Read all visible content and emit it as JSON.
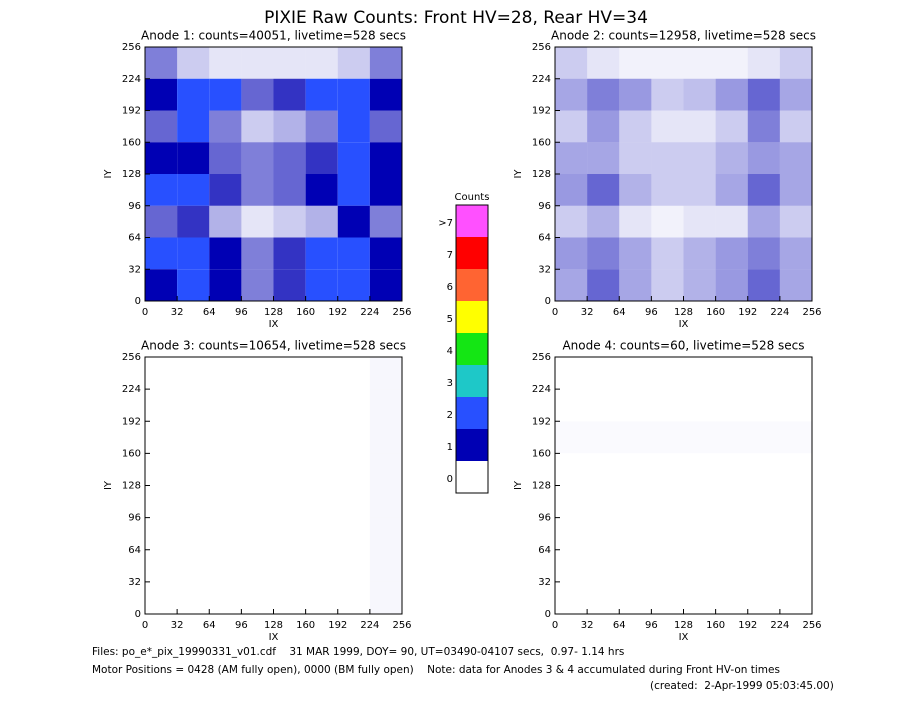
{
  "title": "PIXIE Raw Counts:  Front HV=28, Rear HV=34",
  "chart_data": [
    {
      "type": "heatmap",
      "title": "Anode 1: counts=40051, livetime=528 secs",
      "xlabel": "IX",
      "ylabel": "IY",
      "xlim": [
        0,
        256
      ],
      "ylim": [
        0,
        256
      ],
      "xticks": [
        0,
        32,
        64,
        96,
        128,
        160,
        192,
        224,
        256
      ],
      "yticks": [
        0,
        32,
        64,
        96,
        128,
        160,
        192,
        224,
        256
      ],
      "z": [
        [
          0.5,
          0.2,
          0.1,
          0.1,
          0.1,
          0.1,
          0.2,
          0.5
        ],
        [
          1.0,
          1.5,
          1.2,
          0.6,
          0.8,
          1.2,
          2.0,
          1.0
        ],
        [
          0.6,
          1.2,
          0.5,
          0.2,
          0.3,
          0.5,
          1.5,
          0.6
        ],
        [
          1.0,
          1.0,
          0.6,
          0.5,
          0.6,
          0.8,
          1.2,
          1.0
        ],
        [
          1.2,
          2.0,
          0.8,
          0.5,
          0.6,
          1.0,
          2.0,
          1.0
        ],
        [
          0.6,
          0.8,
          0.3,
          0.1,
          0.2,
          0.3,
          1.0,
          0.5
        ],
        [
          1.2,
          1.5,
          1.0,
          0.5,
          0.8,
          1.2,
          1.6,
          1.0
        ],
        [
          1.0,
          2.0,
          1.0,
          0.5,
          0.8,
          1.2,
          2.0,
          1.0
        ]
      ]
    },
    {
      "type": "heatmap",
      "title": "Anode 2: counts=12958, livetime=528 secs",
      "xlabel": "IX",
      "ylabel": "IY",
      "xlim": [
        0,
        256
      ],
      "ylim": [
        0,
        256
      ],
      "xticks": [
        0,
        32,
        64,
        96,
        128,
        160,
        192,
        224,
        256
      ],
      "yticks": [
        0,
        32,
        64,
        96,
        128,
        160,
        192,
        224,
        256
      ],
      "z": [
        [
          0.2,
          0.1,
          0.05,
          0.05,
          0.05,
          0.05,
          0.1,
          0.2
        ],
        [
          0.35,
          0.5,
          0.4,
          0.2,
          0.25,
          0.4,
          0.6,
          0.35
        ],
        [
          0.2,
          0.4,
          0.2,
          0.1,
          0.1,
          0.2,
          0.5,
          0.2
        ],
        [
          0.35,
          0.35,
          0.2,
          0.2,
          0.2,
          0.3,
          0.4,
          0.35
        ],
        [
          0.4,
          0.6,
          0.3,
          0.2,
          0.2,
          0.35,
          0.6,
          0.35
        ],
        [
          0.2,
          0.3,
          0.1,
          0.05,
          0.1,
          0.1,
          0.35,
          0.2
        ],
        [
          0.4,
          0.5,
          0.35,
          0.2,
          0.3,
          0.4,
          0.5,
          0.35
        ],
        [
          0.35,
          0.6,
          0.35,
          0.2,
          0.3,
          0.4,
          0.6,
          0.35
        ]
      ]
    },
    {
      "type": "heatmap",
      "title": "Anode 3: counts=10654, livetime=528 secs",
      "xlabel": "IX",
      "ylabel": "IY",
      "xlim": [
        0,
        256
      ],
      "ylim": [
        0,
        256
      ],
      "xticks": [
        0,
        32,
        64,
        96,
        128,
        160,
        192,
        224,
        256
      ],
      "yticks": [
        0,
        32,
        64,
        96,
        128,
        160,
        192,
        224,
        256
      ],
      "z": [
        [
          0,
          0,
          0,
          0,
          0,
          0,
          0,
          0.03
        ],
        [
          0,
          0,
          0,
          0,
          0,
          0,
          0,
          0.03
        ],
        [
          0,
          0,
          0,
          0,
          0,
          0,
          0,
          0.03
        ],
        [
          0,
          0,
          0,
          0,
          0,
          0,
          0,
          0.03
        ],
        [
          0,
          0,
          0,
          0,
          0,
          0,
          0,
          0.03
        ],
        [
          0,
          0,
          0,
          0,
          0,
          0,
          0,
          0.03
        ],
        [
          0,
          0,
          0,
          0,
          0,
          0,
          0,
          0.03
        ],
        [
          0,
          0,
          0,
          0,
          0,
          0,
          0,
          0.03
        ]
      ]
    },
    {
      "type": "heatmap",
      "title": "Anode 4: counts=60, livetime=528 secs",
      "xlabel": "IX",
      "ylabel": "IY",
      "xlim": [
        0,
        256
      ],
      "ylim": [
        0,
        256
      ],
      "xticks": [
        0,
        32,
        64,
        96,
        128,
        160,
        192,
        224,
        256
      ],
      "yticks": [
        0,
        32,
        64,
        96,
        128,
        160,
        192,
        224,
        256
      ],
      "z": [
        [
          0,
          0,
          0,
          0,
          0,
          0,
          0,
          0
        ],
        [
          0,
          0,
          0,
          0,
          0,
          0,
          0,
          0
        ],
        [
          0.02,
          0.02,
          0.02,
          0.02,
          0.02,
          0.02,
          0.02,
          0.02
        ],
        [
          0,
          0,
          0,
          0,
          0,
          0,
          0,
          0
        ],
        [
          0,
          0,
          0,
          0,
          0,
          0,
          0,
          0
        ],
        [
          0,
          0,
          0,
          0,
          0,
          0,
          0,
          0
        ],
        [
          0,
          0,
          0,
          0,
          0,
          0,
          0,
          0
        ],
        [
          0,
          0,
          0,
          0,
          0,
          0,
          0,
          0
        ]
      ]
    }
  ],
  "colorbar": {
    "title": "Counts",
    "ticks": [
      0,
      1,
      2,
      3,
      4,
      5,
      6,
      7,
      {
        "value": 8,
        "label": ">7"
      }
    ],
    "colors": [
      "#ffffff",
      "#0000b4",
      "#2850ff",
      "#1ec8c8",
      "#14e614",
      "#ffff00",
      "#ff6432",
      "#ff0000",
      "#ff50ff"
    ]
  },
  "footer": [
    "Files: po_e*_pix_19990331_v01.cdf    31 MAR 1999, DOY= 90, UT=03490-04107 secs,  0.97- 1.14 hrs",
    "Motor Positions = 0428 (AM fully open), 0000 (BM fully open)    Note: data for Anodes 3 & 4 accumulated during Front HV-on times",
    "(created:  2-Apr-1999 05:03:45.00)"
  ]
}
